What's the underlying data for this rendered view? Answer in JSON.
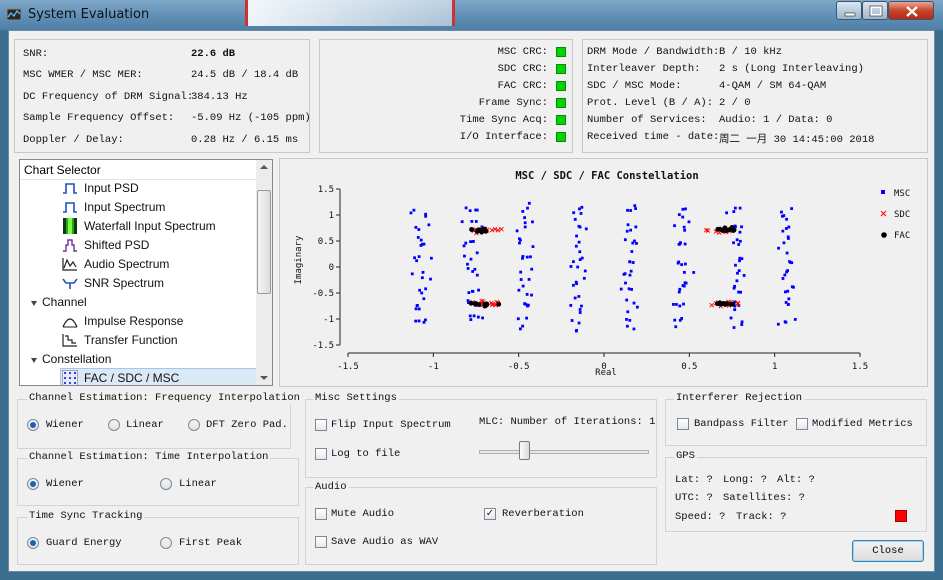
{
  "window": {
    "title": "System Evaluation"
  },
  "status": {
    "rows": [
      {
        "label": "SNR:",
        "value": "22.6 dB"
      },
      {
        "label": "MSC WMER / MSC MER:",
        "value": "24.5 dB / 18.4 dB"
      },
      {
        "label": "DC Frequency of DRM Signal:",
        "value": "384.13 Hz"
      },
      {
        "label": "Sample Frequency Offset:",
        "value": "-5.09 Hz (-105 ppm)"
      },
      {
        "label": "Doppler / Delay:",
        "value": "0.28 Hz / 6.15 ms"
      }
    ],
    "crc": [
      {
        "label": "MSC CRC:",
        "ok": true
      },
      {
        "label": "SDC CRC:",
        "ok": true
      },
      {
        "label": "FAC CRC:",
        "ok": true
      },
      {
        "label": "Frame Sync:",
        "ok": true
      },
      {
        "label": "Time Sync Acq:",
        "ok": true
      },
      {
        "label": "I/O Interface:",
        "ok": true
      }
    ],
    "mode": [
      {
        "label": "DRM Mode / Bandwidth:",
        "value": "B / 10 kHz"
      },
      {
        "label": "Interleaver Depth:",
        "value": "2 s (Long Interleaving)"
      },
      {
        "label": "SDC / MSC Mode:",
        "value": "4-QAM / SM 64-QAM"
      },
      {
        "label": "Prot. Level (B / A):",
        "value": "2 / 0"
      },
      {
        "label": "Number of Services:",
        "value": "Audio: 1 / Data: 0"
      },
      {
        "label": "Received time - date:",
        "value": "周二 一月 30 14:45:00 2018"
      }
    ]
  },
  "chart_selector": {
    "header": "Chart Selector",
    "items": [
      {
        "label": "Input PSD",
        "icon": "psd-icon"
      },
      {
        "label": "Input Spectrum",
        "icon": "spectrum-icon"
      },
      {
        "label": "Waterfall Input Spectrum",
        "icon": "waterfall-icon"
      },
      {
        "label": "Shifted PSD",
        "icon": "shifted-psd-icon"
      },
      {
        "label": "Audio Spectrum",
        "icon": "audio-spectrum-icon"
      },
      {
        "label": "SNR Spectrum",
        "icon": "snr-spectrum-icon"
      },
      {
        "label": "Channel",
        "group": true
      },
      {
        "label": "Impulse Response",
        "icon": "impulse-response-icon"
      },
      {
        "label": "Transfer Function",
        "icon": "transfer-function-icon"
      },
      {
        "label": "Constellation",
        "group": true
      },
      {
        "label": "FAC / SDC / MSC",
        "icon": "constellation-icon",
        "selected": true
      }
    ]
  },
  "chart_data": {
    "type": "scatter",
    "title": "MSC / SDC / FAC Constellation",
    "xlabel": "Real",
    "ylabel": "Imaginary",
    "xlim": [
      -1.5,
      1.5
    ],
    "ylim": [
      -1.5,
      1.5
    ],
    "xticks": [
      "-1.5",
      "-1",
      "-0.5",
      "0",
      "0.5",
      "1",
      "1.5"
    ],
    "yticks": [
      "1.5",
      "1",
      "0.5",
      "0",
      "-0.5",
      "-1",
      "-1.5"
    ],
    "legend_position": "right",
    "series": [
      {
        "name": "MSC",
        "marker": "square",
        "color": "#0000ff",
        "points_description": "64-QAM grid, 8x8 clusters at ±0.15, ±0.46, ±0.77, ±1.08 on both axes",
        "centers": [
          -1.08,
          -0.77,
          -0.46,
          -0.15,
          0.15,
          0.46,
          0.77,
          1.08
        ]
      },
      {
        "name": "SDC",
        "marker": "x",
        "color": "#ff0000",
        "centers": [
          [
            -0.71,
            0.71
          ],
          [
            0.71,
            0.71
          ],
          [
            -0.71,
            -0.71
          ],
          [
            0.71,
            -0.71
          ]
        ]
      },
      {
        "name": "FAC",
        "marker": "circle",
        "color": "#000000",
        "centers": [
          [
            -0.71,
            0.71
          ],
          [
            0.71,
            0.71
          ],
          [
            -0.71,
            -0.71
          ],
          [
            0.71,
            -0.71
          ]
        ]
      }
    ]
  },
  "channel_estimation_freq": {
    "title": "Channel Estimation: Frequency Interpolation",
    "options": [
      "Wiener",
      "Linear",
      "DFT Zero Pad."
    ],
    "selected": "Wiener"
  },
  "channel_estimation_time": {
    "title": "Channel Estimation: Time Interpolation",
    "options": [
      "Wiener",
      "Linear"
    ],
    "selected": "Wiener"
  },
  "time_sync": {
    "title": "Time Sync Tracking",
    "options": [
      "Guard Energy",
      "First Peak"
    ],
    "selected": "Guard Energy"
  },
  "misc": {
    "title": "Misc Settings",
    "flip_input": {
      "label": "Flip Input Spectrum",
      "checked": false
    },
    "log_to_file": {
      "label": "Log to file",
      "checked": false
    },
    "mlc_label": "MLC: Number of Iterations: 1",
    "mlc_value": 1
  },
  "audio": {
    "title": "Audio",
    "mute": {
      "label": "Mute Audio",
      "checked": false
    },
    "reverb": {
      "label": "Reverberation",
      "checked": true
    },
    "save": {
      "label": "Save Audio as WAV",
      "checked": false
    }
  },
  "interferer": {
    "title": "Interferer Rejection",
    "bandpass": {
      "label": "Bandpass Filter",
      "checked": false
    },
    "modified": {
      "label": "Modified Metrics",
      "checked": false
    }
  },
  "gps": {
    "title": "GPS",
    "lat": "Lat: ?",
    "long": "Long: ?",
    "alt": "Alt: ?",
    "utc": "UTC: ?",
    "satellites": "Satellites: ?",
    "speed": "Speed: ?",
    "track": "Track: ?",
    "status_color": "#ff0000"
  },
  "buttons": {
    "close": "Close"
  }
}
